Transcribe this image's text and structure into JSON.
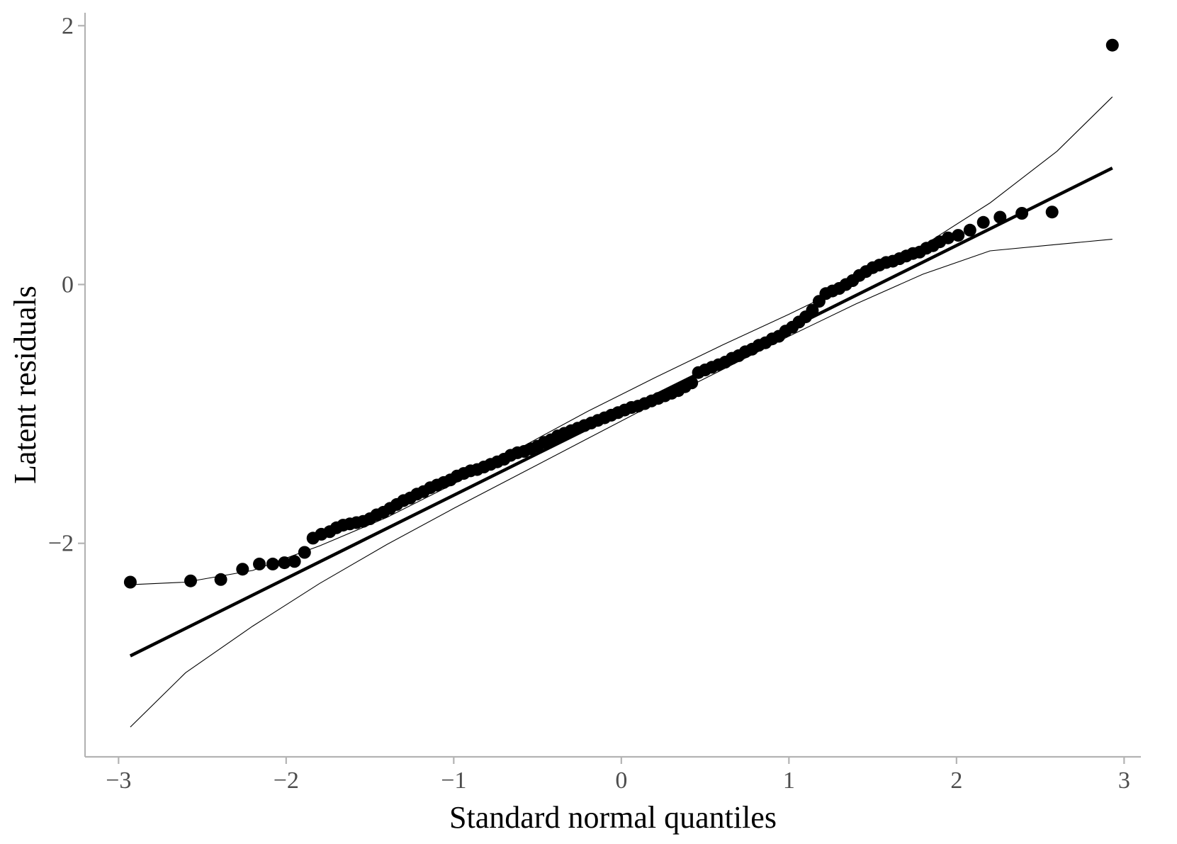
{
  "chart_data": {
    "type": "scatter",
    "title": "",
    "xlabel": "Standard normal quantiles",
    "ylabel": "Latent residuals",
    "xlim": [
      -3.2,
      3.1
    ],
    "ylim": [
      -3.65,
      2.1
    ],
    "xticks": [
      -3,
      -2,
      -1,
      0,
      1,
      2,
      3
    ],
    "xtick_labels": [
      "−3",
      "−2",
      "−1",
      "0",
      "1",
      "2",
      "3"
    ],
    "yticks": [
      -2,
      0,
      2
    ],
    "ytick_labels": [
      "−2",
      "0",
      "2"
    ],
    "grid": false,
    "legend": "none",
    "colors": {
      "points": "#000000",
      "reference_line": "#000000",
      "envelope": "#000000",
      "axis": "#b3b3b3",
      "tick_label": "#4d4d4d"
    },
    "reference_line": {
      "x": [
        -2.93,
        2.93
      ],
      "y": [
        -2.87,
        0.9
      ]
    },
    "envelope_upper": {
      "x": [
        -2.93,
        -2.6,
        -2.2,
        -1.8,
        -1.4,
        -1.0,
        -0.6,
        -0.2,
        0.2,
        0.6,
        1.0,
        1.4,
        1.8,
        2.2,
        2.6,
        2.93
      ],
      "y": [
        -2.32,
        -2.3,
        -2.21,
        -2.02,
        -1.8,
        -1.54,
        -1.26,
        -0.98,
        -0.72,
        -0.47,
        -0.23,
        0.02,
        0.3,
        0.63,
        1.03,
        1.45
      ]
    },
    "envelope_lower": {
      "x": [
        -2.93,
        -2.6,
        -2.2,
        -1.8,
        -1.4,
        -1.0,
        -0.6,
        -0.2,
        0.2,
        0.6,
        1.0,
        1.4,
        1.8,
        2.2,
        2.6,
        2.93
      ],
      "y": [
        -3.42,
        -3.0,
        -2.64,
        -2.31,
        -2.01,
        -1.73,
        -1.46,
        -1.19,
        -0.92,
        -0.66,
        -0.4,
        -0.15,
        0.08,
        0.26,
        0.31,
        0.35
      ]
    },
    "points": {
      "x": [
        -2.93,
        -2.57,
        -2.39,
        -2.26,
        -2.16,
        -2.08,
        -2.01,
        -1.95,
        -1.89,
        -1.84,
        -1.79,
        -1.74,
        -1.7,
        -1.66,
        -1.62,
        -1.58,
        -1.54,
        -1.5,
        -1.46,
        -1.42,
        -1.38,
        -1.34,
        -1.3,
        -1.26,
        -1.22,
        -1.18,
        -1.14,
        -1.1,
        -1.06,
        -1.02,
        -0.98,
        -0.94,
        -0.9,
        -0.86,
        -0.82,
        -0.78,
        -0.74,
        -0.7,
        -0.66,
        -0.62,
        -0.58,
        -0.54,
        -0.5,
        -0.46,
        -0.42,
        -0.38,
        -0.34,
        -0.3,
        -0.26,
        -0.22,
        -0.18,
        -0.14,
        -0.1,
        -0.06,
        -0.02,
        0.02,
        0.06,
        0.1,
        0.14,
        0.18,
        0.22,
        0.26,
        0.3,
        0.34,
        0.38,
        0.42,
        0.46,
        0.5,
        0.54,
        0.58,
        0.62,
        0.66,
        0.7,
        0.74,
        0.78,
        0.82,
        0.86,
        0.9,
        0.94,
        0.98,
        1.02,
        1.06,
        1.1,
        1.14,
        1.18,
        1.22,
        1.26,
        1.3,
        1.34,
        1.38,
        1.42,
        1.46,
        1.5,
        1.54,
        1.58,
        1.62,
        1.66,
        1.7,
        1.74,
        1.78,
        1.82,
        1.86,
        1.9,
        1.95,
        2.01,
        2.08,
        2.16,
        2.26,
        2.39,
        2.57,
        2.93
      ],
      "y": [
        -2.3,
        -2.29,
        -2.28,
        -2.2,
        -2.16,
        -2.16,
        -2.15,
        -2.14,
        -2.07,
        -1.96,
        -1.93,
        -1.91,
        -1.88,
        -1.86,
        -1.85,
        -1.84,
        -1.83,
        -1.81,
        -1.78,
        -1.76,
        -1.73,
        -1.7,
        -1.67,
        -1.65,
        -1.62,
        -1.6,
        -1.57,
        -1.55,
        -1.53,
        -1.51,
        -1.48,
        -1.46,
        -1.44,
        -1.43,
        -1.41,
        -1.39,
        -1.37,
        -1.35,
        -1.32,
        -1.3,
        -1.29,
        -1.27,
        -1.25,
        -1.22,
        -1.2,
        -1.17,
        -1.15,
        -1.13,
        -1.11,
        -1.09,
        -1.07,
        -1.05,
        -1.03,
        -1.01,
        -0.99,
        -0.97,
        -0.95,
        -0.94,
        -0.92,
        -0.9,
        -0.88,
        -0.86,
        -0.84,
        -0.82,
        -0.79,
        -0.76,
        -0.68,
        -0.66,
        -0.64,
        -0.62,
        -0.6,
        -0.57,
        -0.55,
        -0.52,
        -0.5,
        -0.47,
        -0.45,
        -0.42,
        -0.4,
        -0.36,
        -0.33,
        -0.29,
        -0.25,
        -0.2,
        -0.13,
        -0.07,
        -0.05,
        -0.03,
        0.0,
        0.03,
        0.07,
        0.1,
        0.13,
        0.15,
        0.17,
        0.18,
        0.2,
        0.22,
        0.24,
        0.25,
        0.28,
        0.3,
        0.33,
        0.36,
        0.38,
        0.42,
        0.48,
        0.52,
        0.55,
        0.56,
        1.85
      ]
    }
  }
}
